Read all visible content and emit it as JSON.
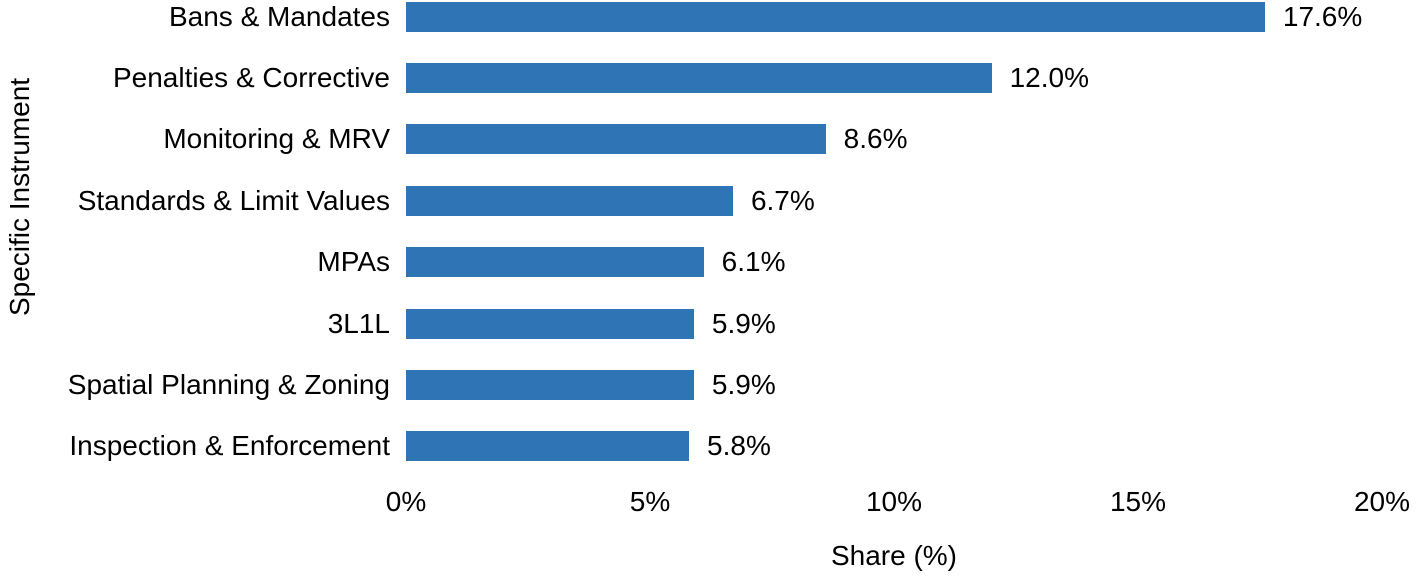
{
  "chart_data": {
    "type": "bar",
    "orientation": "horizontal",
    "title": "",
    "xlabel": "Share (%)",
    "ylabel": "Specific Instrument",
    "categories": [
      "Bans & Mandates",
      "Penalties & Corrective",
      "Monitoring & MRV",
      "Standards & Limit Values",
      "MPAs",
      "3L1L",
      "Spatial Planning & Zoning",
      "Inspection & Enforcement"
    ],
    "values": [
      17.6,
      12.0,
      8.6,
      6.7,
      6.1,
      5.9,
      5.9,
      5.8
    ],
    "value_labels": [
      "17.6%",
      "12.0%",
      "8.6%",
      "6.7%",
      "6.1%",
      "5.9%",
      "5.9%",
      "5.8%"
    ],
    "xlim": [
      0,
      20
    ],
    "x_tick_values": [
      0,
      5,
      10,
      15,
      20
    ],
    "x_tick_labels": [
      "0%",
      "5%",
      "10%",
      "15%",
      "20%"
    ],
    "bar_color": "#2F75B5",
    "text_color": "#000000",
    "background_color": "#ffffff",
    "grid": false,
    "legend_position": "none"
  }
}
